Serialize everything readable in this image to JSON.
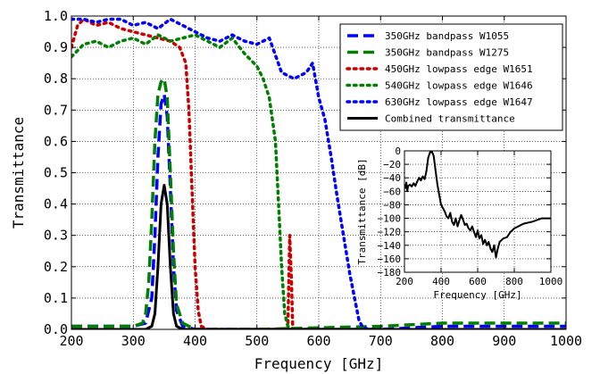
{
  "chart_data": [
    {
      "type": "line",
      "title": "",
      "xlabel": "Frequency [GHz]",
      "ylabel": "Transmittance",
      "xlim": [
        200,
        1000
      ],
      "ylim": [
        0.0,
        1.0
      ],
      "x_ticks": [
        200,
        300,
        400,
        500,
        600,
        700,
        800,
        900,
        1000
      ],
      "y_ticks": [
        0.0,
        0.1,
        0.2,
        0.3,
        0.4,
        0.5,
        0.6,
        0.7,
        0.8,
        0.9,
        1.0
      ],
      "x_tick_labels": [
        "200",
        "300",
        "400",
        "500",
        "600",
        "700",
        "800",
        "900",
        "1000"
      ],
      "y_tick_labels": [
        "0.0",
        "0.1",
        "0.2",
        "0.3",
        "0.4",
        "0.5",
        "0.6",
        "0.7",
        "0.8",
        "0.9",
        "1.0"
      ],
      "grid": true,
      "legend_position": "top-right",
      "series": [
        {
          "name": "350GHz bandpass W1055",
          "color": "#0000ff",
          "style": "dashed",
          "x": [
            200,
            300,
            320,
            330,
            335,
            340,
            345,
            350,
            355,
            360,
            365,
            370,
            380,
            400,
            500,
            700,
            800,
            900,
            1000
          ],
          "y": [
            0.01,
            0.01,
            0.02,
            0.1,
            0.3,
            0.55,
            0.72,
            0.75,
            0.68,
            0.45,
            0.2,
            0.06,
            0.01,
            0.0,
            0.0,
            0.0,
            0.01,
            0.01,
            0.01
          ]
        },
        {
          "name": "350GHz bandpass W1275",
          "color": "#008000",
          "style": "dashed",
          "x": [
            200,
            300,
            315,
            320,
            325,
            330,
            335,
            340,
            345,
            350,
            355,
            360,
            365,
            370,
            380,
            400,
            500,
            700,
            800,
            900,
            1000
          ],
          "y": [
            0.01,
            0.01,
            0.02,
            0.05,
            0.15,
            0.35,
            0.6,
            0.75,
            0.79,
            0.8,
            0.74,
            0.5,
            0.25,
            0.08,
            0.02,
            0.0,
            0.0,
            0.01,
            0.02,
            0.02,
            0.02
          ]
        },
        {
          "name": "450GHz lowpass edge W1651",
          "color": "#cc0000",
          "style": "dotted",
          "x": [
            200,
            210,
            220,
            240,
            260,
            280,
            300,
            320,
            340,
            360,
            375,
            385,
            390,
            395,
            400,
            405,
            410,
            420,
            450,
            500,
            550,
            553,
            556,
            558,
            560,
            600
          ],
          "y": [
            0.9,
            0.97,
            0.99,
            0.97,
            0.98,
            0.96,
            0.95,
            0.94,
            0.93,
            0.92,
            0.9,
            0.85,
            0.7,
            0.45,
            0.2,
            0.06,
            0.01,
            0.0,
            0.0,
            0.0,
            0.0,
            0.3,
            0.15,
            0.0,
            0.0,
            0.0
          ]
        },
        {
          "name": "540GHz lowpass edge W1646",
          "color": "#008000",
          "style": "dotted",
          "x": [
            200,
            220,
            240,
            260,
            280,
            300,
            320,
            340,
            360,
            380,
            400,
            420,
            440,
            460,
            480,
            500,
            510,
            520,
            530,
            535,
            540,
            545,
            550,
            560,
            600
          ],
          "y": [
            0.87,
            0.91,
            0.92,
            0.9,
            0.92,
            0.93,
            0.91,
            0.94,
            0.92,
            0.93,
            0.94,
            0.92,
            0.9,
            0.93,
            0.88,
            0.84,
            0.8,
            0.74,
            0.6,
            0.4,
            0.2,
            0.05,
            0.01,
            0.0,
            0.0
          ]
        },
        {
          "name": "630GHz lowpass edge W1647",
          "color": "#0000ff",
          "style": "dotted",
          "x": [
            200,
            220,
            240,
            260,
            280,
            300,
            320,
            340,
            360,
            380,
            400,
            420,
            440,
            460,
            480,
            500,
            520,
            540,
            560,
            580,
            590,
            600,
            610,
            620,
            630,
            640,
            650,
            660,
            665,
            670,
            680,
            700
          ],
          "y": [
            0.99,
            0.99,
            0.98,
            0.99,
            0.99,
            0.97,
            0.98,
            0.96,
            0.99,
            0.97,
            0.95,
            0.93,
            0.92,
            0.94,
            0.92,
            0.91,
            0.93,
            0.82,
            0.8,
            0.82,
            0.85,
            0.74,
            0.67,
            0.55,
            0.42,
            0.3,
            0.18,
            0.08,
            0.03,
            0.01,
            0.0,
            0.0
          ]
        },
        {
          "name": "Combined transmittance",
          "color": "#000000",
          "style": "solid",
          "x": [
            200,
            320,
            330,
            335,
            340,
            345,
            350,
            355,
            360,
            365,
            370,
            380,
            1000
          ],
          "y": [
            0.0,
            0.0,
            0.01,
            0.05,
            0.2,
            0.4,
            0.46,
            0.4,
            0.2,
            0.05,
            0.01,
            0.0,
            0.0
          ]
        }
      ]
    },
    {
      "type": "line",
      "title": "",
      "xlabel": "Frequency [GHz]",
      "ylabel": "Transmittance [dB]",
      "xlim": [
        200,
        1000
      ],
      "ylim": [
        -180,
        0
      ],
      "x_ticks": [
        200,
        400,
        600,
        800,
        1000
      ],
      "y_ticks": [
        0,
        -20,
        -40,
        -60,
        -80,
        -100,
        -120,
        -140,
        -160,
        -180
      ],
      "x_tick_labels": [
        "200",
        "400",
        "600",
        "800",
        "1000"
      ],
      "y_tick_labels": [
        "0",
        "−20",
        "−40",
        "−60",
        "−80",
        "−100",
        "−120",
        "−140",
        "−160",
        "−180"
      ],
      "grid": true,
      "series": [
        {
          "name": "Combined transmittance",
          "color": "#000000",
          "style": "solid",
          "x": [
            200,
            205,
            210,
            215,
            220,
            230,
            240,
            250,
            260,
            270,
            280,
            290,
            300,
            310,
            320,
            330,
            340,
            350,
            360,
            370,
            380,
            390,
            400,
            410,
            420,
            430,
            440,
            450,
            460,
            470,
            480,
            490,
            500,
            510,
            520,
            530,
            540,
            550,
            560,
            570,
            580,
            590,
            600,
            610,
            620,
            630,
            640,
            650,
            660,
            670,
            680,
            690,
            700,
            710,
            720,
            740,
            760,
            780,
            800,
            850,
            900,
            950,
            1000
          ],
          "y": [
            -50,
            -55,
            -47,
            -60,
            -52,
            -50,
            -53,
            -48,
            -52,
            -45,
            -40,
            -44,
            -38,
            -42,
            -30,
            -10,
            -2,
            -1,
            -8,
            -30,
            -50,
            -65,
            -80,
            -85,
            -90,
            -97,
            -100,
            -92,
            -105,
            -110,
            -100,
            -112,
            -103,
            -95,
            -102,
            -110,
            -108,
            -115,
            -118,
            -112,
            -120,
            -128,
            -118,
            -130,
            -125,
            -138,
            -132,
            -140,
            -135,
            -145,
            -150,
            -140,
            -158,
            -145,
            -135,
            -130,
            -128,
            -120,
            -115,
            -108,
            -105,
            -100,
            -100
          ]
        }
      ]
    }
  ]
}
